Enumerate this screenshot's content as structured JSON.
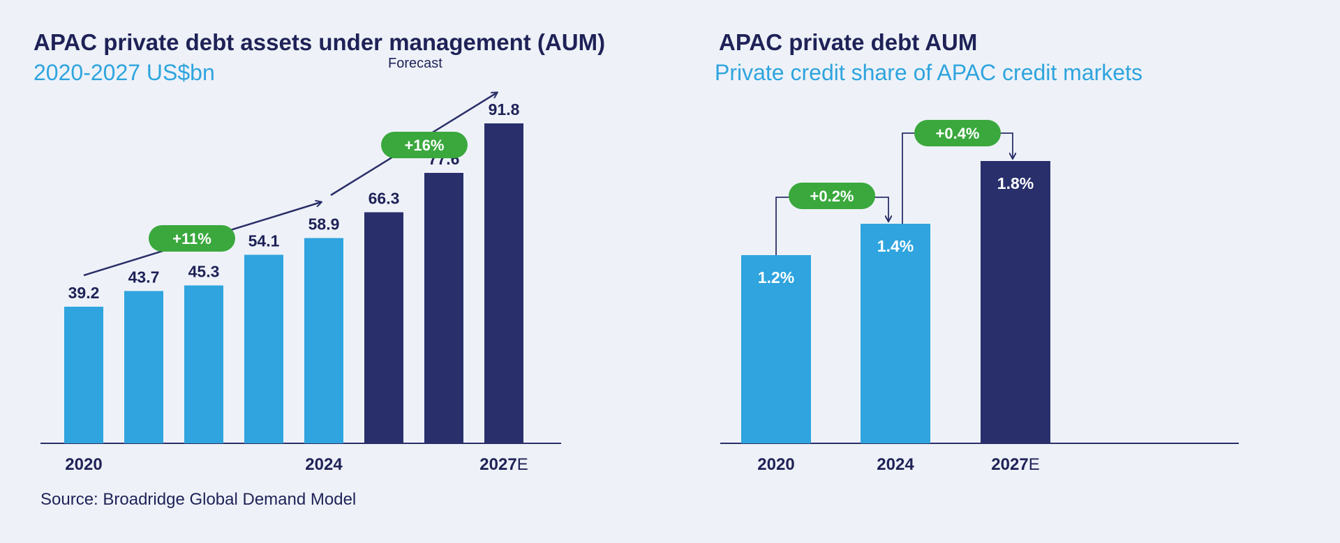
{
  "colors": {
    "actual": "#2fa4de",
    "forecast": "#282f6b",
    "growth_pill": "#3aa83d",
    "axis": "#2a2e68",
    "arrow": "#2a2e68",
    "background": "#eef2f8"
  },
  "left_chart": {
    "title": "APAC private debt assets under management (AUM)",
    "subtitle": "2020-2027 US$bn",
    "forecast_label": "Forecast",
    "source": "Source: Broadridge Global Demand Model",
    "chart_data": {
      "type": "bar",
      "values": [
        39.2,
        43.7,
        45.3,
        54.1,
        58.9,
        66.3,
        77.6,
        91.8
      ],
      "value_labels": [
        "39.2",
        "43.7",
        "45.3",
        "54.1",
        "58.9",
        "66.3",
        "77.6",
        "91.8"
      ],
      "bar_kind": [
        "actual",
        "actual",
        "actual",
        "actual",
        "actual",
        "forecast",
        "forecast",
        "forecast"
      ],
      "tick_labels": [
        {
          "index": 0,
          "text": "2020",
          "suffix": ""
        },
        {
          "index": 4,
          "text": "2024",
          "suffix": ""
        },
        {
          "index": 7,
          "text": "2027",
          "suffix": "E"
        }
      ],
      "ylim": [
        0,
        100
      ],
      "grid": false,
      "growth_annotations": [
        {
          "label": "+11%",
          "from_index": 0,
          "to_index": 4
        },
        {
          "label": "+16%",
          "from_index": 4,
          "to_index": 7
        }
      ]
    }
  },
  "right_chart": {
    "title": "APAC private debt AUM",
    "subtitle": "Private credit share of APAC credit markets",
    "chart_data": {
      "type": "bar",
      "categories": [
        "2020",
        "2024",
        "2027"
      ],
      "category_suffixes": [
        "",
        "",
        "E"
      ],
      "values": [
        1.2,
        1.4,
        1.8
      ],
      "value_labels": [
        "1.2%",
        "1.4%",
        "1.8%"
      ],
      "bar_kind": [
        "actual",
        "actual",
        "forecast"
      ],
      "ylim": [
        0,
        2.0
      ],
      "grid": false,
      "step_annotations": [
        {
          "label": "+0.2%",
          "from_index": 0,
          "to_index": 1
        },
        {
          "label": "+0.4%",
          "from_index": 1,
          "to_index": 2
        }
      ]
    }
  }
}
